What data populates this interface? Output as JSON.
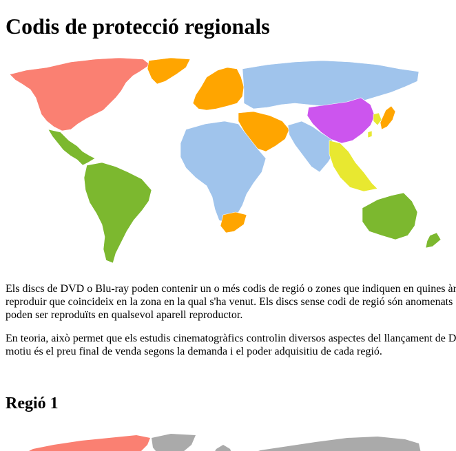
{
  "page": {
    "title": "Codis de protecció regionals"
  },
  "intro": {
    "lines": [
      "Els discs de DVD o Blu-ray poden contenir un o més codis de regió o zones que indiquen en quines àr",
      "reproduir que coincideix en la zona en la qual s'ha venut. Els discs sense codi de regió són anomenats",
      "poden ser reproduïts en qualsevol aparell reproductor."
    ]
  },
  "theory": {
    "lines": [
      "En teoria, això permet que els estudis cinematogràfics controlin diversos aspectes del llançament de D",
      "motiu és el preu final de venda segons la demanda i el poder adquisitiu de cada regió."
    ]
  },
  "section": {
    "heading": "Regió 1"
  },
  "map_colors": {
    "region_1": "#fa8072",
    "region_2": "#ffa500",
    "region_3": "#e8e830",
    "region_4": "#7cb82f",
    "region_5": "#a0c4ec",
    "region_6": "#cc55ee",
    "outline": "#ffffff",
    "inactive": "#aaaaaa"
  }
}
